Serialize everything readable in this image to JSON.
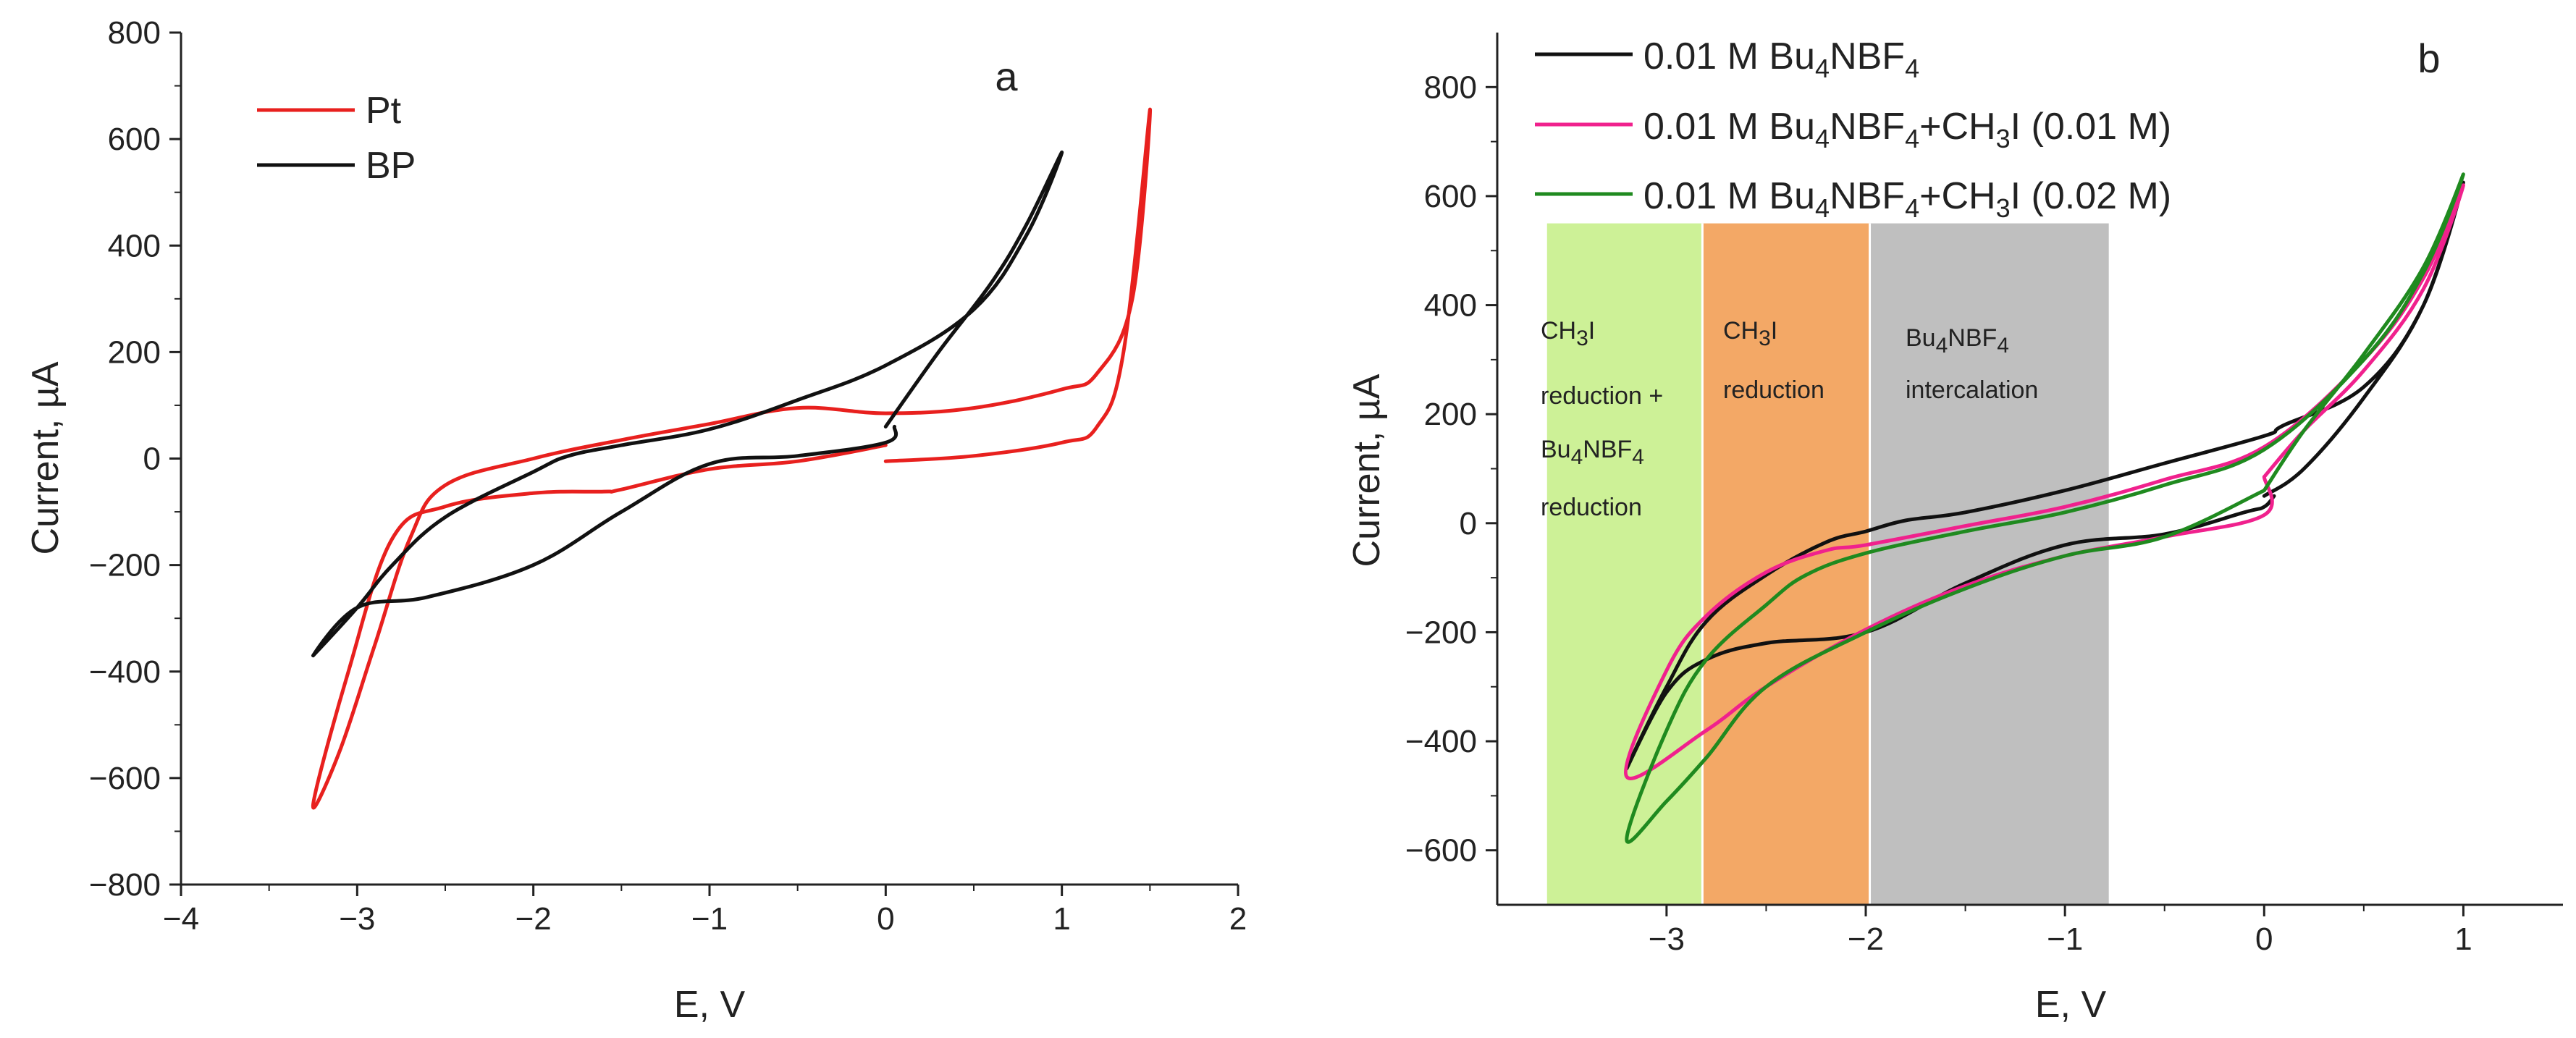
{
  "chart_data": [
    {
      "id": "a",
      "type": "line",
      "panel_label": "a",
      "xlabel": "E, V",
      "ylabel": "Current, µA",
      "xlim": [
        -4,
        2
      ],
      "ylim": [
        -800,
        800
      ],
      "x_ticks": [
        -4,
        -3,
        -2,
        -1,
        0,
        1,
        2
      ],
      "y_ticks": [
        -800,
        -600,
        -400,
        -200,
        0,
        200,
        400,
        600,
        800
      ],
      "x_tick_labels": [
        "−4",
        "−3",
        "−2",
        "−1",
        "0",
        "1",
        "2"
      ],
      "y_tick_labels": [
        "−800",
        "−600",
        "−400",
        "−200",
        "0",
        "200",
        "400",
        "600",
        "800"
      ],
      "legend_position": "top-left",
      "series": [
        {
          "name": "Pt",
          "color": "#e8201e",
          "x": [
            0.0,
            0.5,
            1.0,
            1.2,
            1.35,
            1.5,
            1.4,
            1.2,
            1.0,
            0.5,
            0.0,
            -0.5,
            -1.0,
            -1.5,
            -2.0,
            -2.5,
            -2.7,
            -2.9,
            -3.1,
            -3.25,
            -3.05,
            -2.8,
            -2.5,
            -2.0,
            -1.6,
            -1.5,
            -1.0,
            -0.5,
            0.0
          ],
          "y": [
            -5,
            5,
            30,
            60,
            200,
            655,
            300,
            160,
            130,
            95,
            85,
            95,
            65,
            35,
            0,
            -50,
            -150,
            -350,
            -550,
            -650,
            -400,
            -150,
            -90,
            -65,
            -62,
            -58,
            -20,
            -5,
            25
          ]
        },
        {
          "name": "BP",
          "color": "#111111",
          "x": [
            0.0,
            0.3,
            0.6,
            0.8,
            1.0,
            0.8,
            0.5,
            0.0,
            -0.5,
            -1.0,
            -1.5,
            -1.8,
            -2.0,
            -2.5,
            -2.8,
            -3.0,
            -3.25,
            -3.0,
            -2.6,
            -2.0,
            -1.5,
            -1.0,
            -0.5,
            0.0,
            0.05
          ],
          "y": [
            60,
            200,
            330,
            440,
            575,
            420,
            280,
            175,
            110,
            55,
            25,
            5,
            -25,
            -110,
            -200,
            -280,
            -370,
            -280,
            -260,
            -200,
            -100,
            -10,
            5,
            30,
            60
          ]
        }
      ]
    },
    {
      "id": "b",
      "type": "line",
      "panel_label": "b",
      "xlabel": "E, V",
      "ylabel": "Current, µA",
      "xlim": [
        -3.85,
        1.5
      ],
      "ylim": [
        -700,
        900
      ],
      "x_ticks": [
        -3,
        -2,
        -1,
        0,
        1
      ],
      "y_ticks": [
        -600,
        -400,
        -200,
        0,
        200,
        400,
        600,
        800
      ],
      "x_tick_labels": [
        "−3",
        "−2",
        "−1",
        "0",
        "1"
      ],
      "y_tick_labels": [
        "−600",
        "−400",
        "−200",
        "0",
        "200",
        "400",
        "600",
        "800"
      ],
      "legend_position": "top-left",
      "regions": [
        {
          "x0": -3.6,
          "x1": -2.82,
          "color": "#cdf197"
        },
        {
          "x0": -2.82,
          "x1": -1.98,
          "color": "#f3a866"
        },
        {
          "x0": -1.98,
          "x1": -0.78,
          "color": "#bfbfbf"
        }
      ],
      "region_labels": {
        "r1_line1_pre": "CH",
        "r1_line1_sub": "3",
        "r1_line1_post": "I",
        "r1_line2": "reduction +",
        "r1_line3_pre": "Bu",
        "r1_line3_sub1": "4",
        "r1_line3_mid": "NBF",
        "r1_line3_sub2": "4",
        "r1_line4": "reduction",
        "r2_line1_pre": "CH",
        "r2_line1_sub": "3",
        "r2_line1_post": "I",
        "r2_line2": "reduction",
        "r3_line1_pre": "Bu",
        "r3_line1_sub1": "4",
        "r3_line1_mid": "NBF",
        "r3_line1_sub2": "4",
        "r3_line2": "intercalation"
      },
      "legend": {
        "s1_pre": "0.01 M Bu",
        "s1_sub1": "4",
        "s1_mid": "NBF",
        "s1_sub2": "4",
        "s2_pre": "0.01 M Bu",
        "s2_sub1": "4",
        "s2_mid": "NBF",
        "s2_sub2": "4",
        "s2_mid2": "+CH",
        "s2_sub3": "3",
        "s2_post": "I (0.01 M)",
        "s3_pre": "0.01 M Bu",
        "s3_sub1": "4",
        "s3_mid": "NBF",
        "s3_sub2": "4",
        "s3_mid2": "+CH",
        "s3_sub3": "3",
        "s3_post": "I (0.02 M)"
      },
      "series": [
        {
          "name": "0.01 M Bu4NBF4",
          "color": "#111111",
          "x": [
            0.0,
            0.2,
            0.5,
            0.8,
            1.0,
            0.8,
            0.5,
            0.1,
            0.0,
            -0.5,
            -1.0,
            -1.5,
            -1.8,
            -2.0,
            -2.2,
            -2.5,
            -2.8,
            -3.0,
            -3.2,
            -3.0,
            -2.8,
            -2.5,
            -2.0,
            -1.5,
            -1.0,
            -0.5,
            -0.1,
            0.0,
            0.05
          ],
          "y": [
            50,
            100,
            230,
            400,
            625,
            400,
            250,
            180,
            160,
            110,
            60,
            20,
            5,
            -15,
            -35,
            -95,
            -180,
            -300,
            -450,
            -310,
            -250,
            -220,
            -200,
            -110,
            -40,
            -20,
            20,
            30,
            50
          ]
        },
        {
          "name": "0.01 M Bu4NBF4+CH3I (0.01 M)",
          "color": "#f0218d",
          "x": [
            0.0,
            0.2,
            0.5,
            0.8,
            1.0,
            0.8,
            0.5,
            0.0,
            -0.5,
            -1.0,
            -1.5,
            -2.0,
            -2.2,
            -2.5,
            -2.8,
            -3.0,
            -3.2,
            -2.8,
            -2.5,
            -2.0,
            -1.5,
            -1.0,
            -0.5,
            0.0,
            0.0
          ],
          "y": [
            85,
            170,
            280,
            430,
            620,
            450,
            300,
            140,
            80,
            30,
            -5,
            -40,
            -50,
            -90,
            -170,
            -270,
            -465,
            -380,
            -300,
            -195,
            -115,
            -60,
            -25,
            15,
            85
          ]
        },
        {
          "name": "0.01 M Bu4NBF4+CH3I (0.02 M)",
          "color": "#1f8a1f",
          "x": [
            0.0,
            0.2,
            0.5,
            0.8,
            1.0,
            0.8,
            0.5,
            0.0,
            -0.5,
            -1.0,
            -1.5,
            -2.0,
            -2.3,
            -2.5,
            -2.8,
            -3.0,
            -3.2,
            -3.0,
            -2.8,
            -2.5,
            -2.0,
            -1.5,
            -1.0,
            -0.5,
            0.0
          ],
          "y": [
            60,
            170,
            310,
            470,
            640,
            460,
            300,
            135,
            70,
            20,
            -15,
            -55,
            -95,
            -150,
            -250,
            -380,
            -580,
            -510,
            -430,
            -300,
            -200,
            -120,
            -60,
            -25,
            60
          ]
        }
      ]
    }
  ]
}
